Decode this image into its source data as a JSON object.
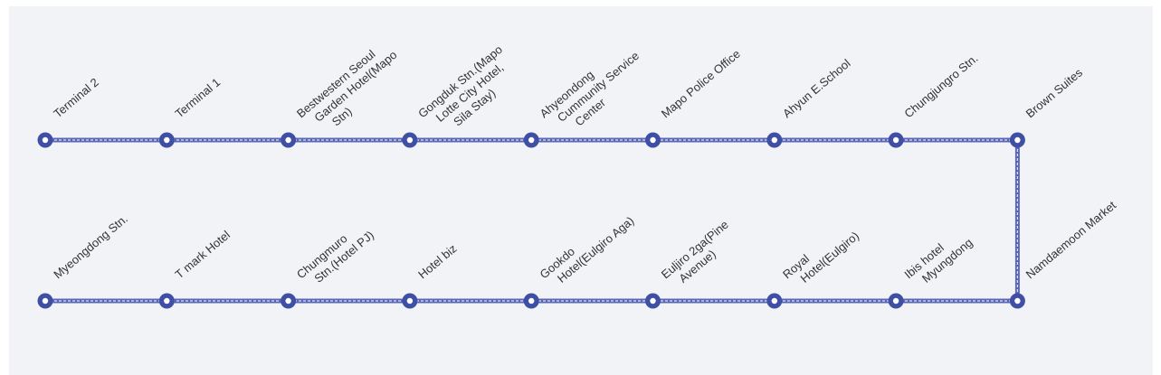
{
  "route": {
    "colors": {
      "background": "#f2f3f7",
      "line": "#5a67b5",
      "line_inner": "#dfe3f6",
      "stop_outer": "#3f4fa4",
      "stop_inner": "#ffffff",
      "label": "#333333"
    },
    "top_row": [
      {
        "label": "Terminal 2"
      },
      {
        "label": "Terminal 1"
      },
      {
        "label": "Bestwestern Seoul Garden Hotel(Mapo Stn)"
      },
      {
        "label": "Gongduk Stn.(Mapo Lotte City Hotel, Sila Stay)"
      },
      {
        "label": "Ahyeondong Cummunity Service Center"
      },
      {
        "label": "Mapo Police Office"
      },
      {
        "label": "Ahyun E.School"
      },
      {
        "label": "Chungjungro Stn."
      },
      {
        "label": "Brown Suites"
      }
    ],
    "bottom_row": [
      {
        "label": "Myeongdong Stn."
      },
      {
        "label": "T mark Hotel"
      },
      {
        "label": "Chungmuro Stn.(Hotel PJ)"
      },
      {
        "label": "Hotel biz"
      },
      {
        "label": "Gookdo Hotel(Eulgiro Aga)"
      },
      {
        "label": "Euljiro 2ga(Pine Avenue)"
      },
      {
        "label": "Royal Hotel(Eulgiro)"
      },
      {
        "label": "Ibis hotel Myungdong"
      },
      {
        "label": "Namdaemoon Market"
      }
    ]
  }
}
